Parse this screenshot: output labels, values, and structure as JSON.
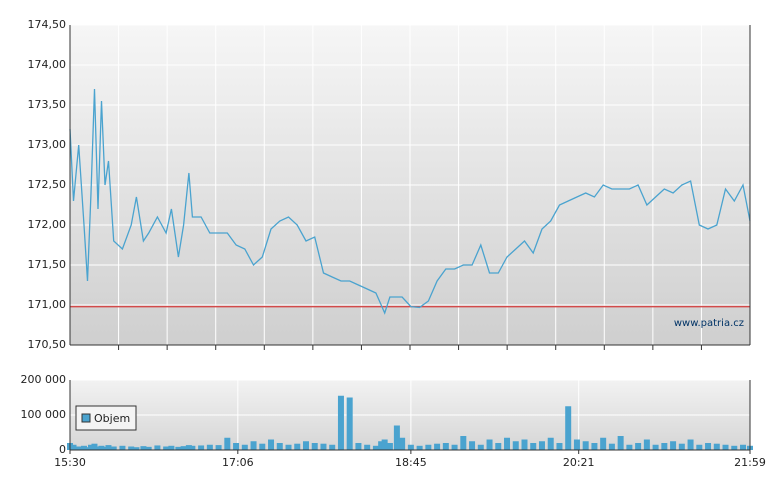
{
  "chart_data": [
    {
      "type": "line",
      "color": "#4aa3cf",
      "reference_line": 170.98,
      "reference_color": "#d24a4a",
      "watermark": "www.patria.cz",
      "ylim": [
        170.5,
        174.5
      ],
      "yticks": [
        {
          "value": 170.5,
          "label": "170,50"
        },
        {
          "value": 171,
          "label": "171,00"
        },
        {
          "value": 171.5,
          "label": "171,50"
        },
        {
          "value": 172,
          "label": "172,00"
        },
        {
          "value": 172.5,
          "label": "172,50"
        },
        {
          "value": 173,
          "label": "173,00"
        },
        {
          "value": 173.5,
          "label": "173,50"
        },
        {
          "value": 174,
          "label": "174,00"
        },
        {
          "value": 174.5,
          "label": "174,50"
        }
      ],
      "xlim": [
        "15:30",
        "21:59"
      ],
      "x": [
        "15:30",
        "15:32",
        "15:35",
        "15:38",
        "15:40",
        "15:42",
        "15:44",
        "15:46",
        "15:48",
        "15:50",
        "15:52",
        "15:55",
        "16:00",
        "16:05",
        "16:08",
        "16:12",
        "16:15",
        "16:20",
        "16:25",
        "16:28",
        "16:32",
        "16:35",
        "16:38",
        "16:40",
        "16:45",
        "16:50",
        "16:55",
        "17:00",
        "17:05",
        "17:10",
        "17:15",
        "17:20",
        "17:25",
        "17:30",
        "17:35",
        "17:40",
        "17:45",
        "17:50",
        "17:55",
        "18:00",
        "18:05",
        "18:10",
        "18:15",
        "18:20",
        "18:25",
        "18:28",
        "18:30",
        "18:33",
        "18:37",
        "18:40",
        "18:45",
        "18:50",
        "18:55",
        "19:00",
        "19:05",
        "19:10",
        "19:15",
        "19:20",
        "19:25",
        "19:30",
        "19:35",
        "19:40",
        "19:45",
        "19:50",
        "19:55",
        "20:00",
        "20:05",
        "20:10",
        "20:15",
        "20:20",
        "20:25",
        "20:30",
        "20:35",
        "20:40",
        "20:45",
        "20:50",
        "20:55",
        "21:00",
        "21:05",
        "21:10",
        "21:15",
        "21:20",
        "21:25",
        "21:30",
        "21:35",
        "21:40",
        "21:45",
        "21:50",
        "21:55",
        "21:59"
      ],
      "values": [
        173.2,
        172.3,
        173.0,
        172.0,
        171.3,
        172.4,
        173.7,
        172.2,
        173.55,
        172.5,
        172.8,
        171.8,
        171.7,
        172.0,
        172.35,
        171.8,
        171.9,
        172.1,
        171.9,
        172.2,
        171.6,
        172.0,
        172.65,
        172.1,
        172.1,
        171.9,
        171.9,
        171.9,
        171.75,
        171.7,
        171.5,
        171.6,
        171.95,
        172.05,
        172.1,
        172.0,
        171.8,
        171.85,
        171.4,
        171.35,
        171.3,
        171.3,
        171.25,
        171.2,
        171.15,
        171.0,
        170.9,
        171.1,
        171.1,
        171.1,
        170.98,
        170.97,
        171.05,
        171.3,
        171.45,
        171.45,
        171.5,
        171.5,
        171.75,
        171.4,
        171.4,
        171.6,
        171.7,
        171.8,
        171.65,
        171.95,
        172.05,
        172.25,
        172.3,
        172.35,
        172.4,
        172.35,
        172.5,
        172.45,
        172.45,
        172.45,
        172.5,
        172.25,
        172.35,
        172.45,
        172.4,
        172.5,
        172.55,
        172.0,
        171.95,
        172.0,
        172.45,
        172.3,
        172.5,
        172.05
      ]
    },
    {
      "type": "bar",
      "color": "#4aa3cf",
      "legend": "Objem",
      "ylim": [
        0,
        200000
      ],
      "yticks": [
        0,
        {
          "value": 100000,
          "label": "100 000"
        },
        {
          "value": 200000,
          "label": "200 000"
        }
      ],
      "xlim": [
        "15:30",
        "21:59"
      ],
      "xticks": [
        "15:30",
        "17:06",
        "18:45",
        "20:21",
        "21:59"
      ],
      "x": [
        "15:30",
        "15:32",
        "15:35",
        "15:38",
        "15:40",
        "15:42",
        "15:44",
        "15:46",
        "15:48",
        "15:50",
        "15:52",
        "15:55",
        "16:00",
        "16:05",
        "16:08",
        "16:12",
        "16:15",
        "16:20",
        "16:25",
        "16:28",
        "16:32",
        "16:35",
        "16:38",
        "16:40",
        "16:45",
        "16:50",
        "16:55",
        "17:00",
        "17:05",
        "17:10",
        "17:15",
        "17:20",
        "17:25",
        "17:30",
        "17:35",
        "17:40",
        "17:45",
        "17:50",
        "17:55",
        "18:00",
        "18:05",
        "18:10",
        "18:15",
        "18:20",
        "18:25",
        "18:28",
        "18:30",
        "18:33",
        "18:37",
        "18:40",
        "18:45",
        "18:50",
        "18:55",
        "19:00",
        "19:05",
        "19:10",
        "19:15",
        "19:20",
        "19:25",
        "19:30",
        "19:35",
        "19:40",
        "19:45",
        "19:50",
        "19:55",
        "20:00",
        "20:05",
        "20:10",
        "20:15",
        "20:20",
        "20:25",
        "20:30",
        "20:35",
        "20:40",
        "20:45",
        "20:50",
        "20:55",
        "21:00",
        "21:05",
        "21:10",
        "21:15",
        "21:20",
        "21:25",
        "21:30",
        "21:35",
        "21:40",
        "21:45",
        "21:50",
        "21:55",
        "21:59"
      ],
      "values": [
        20000,
        15000,
        10000,
        12000,
        8000,
        15000,
        18000,
        10000,
        12000,
        9000,
        14000,
        10000,
        12000,
        10000,
        8000,
        11000,
        9000,
        13000,
        10000,
        12000,
        9000,
        11000,
        14000,
        12000,
        13000,
        15000,
        14000,
        35000,
        20000,
        15000,
        25000,
        18000,
        30000,
        20000,
        15000,
        18000,
        25000,
        20000,
        18000,
        15000,
        155000,
        150000,
        20000,
        15000,
        12000,
        25000,
        30000,
        20000,
        70000,
        35000,
        15000,
        12000,
        15000,
        18000,
        20000,
        15000,
        40000,
        25000,
        15000,
        30000,
        20000,
        35000,
        25000,
        30000,
        20000,
        25000,
        35000,
        20000,
        125000,
        30000,
        25000,
        20000,
        35000,
        18000,
        40000,
        15000,
        20000,
        30000,
        15000,
        20000,
        25000,
        18000,
        30000,
        15000,
        20000,
        18000,
        15000,
        12000,
        15000,
        12000
      ]
    }
  ]
}
